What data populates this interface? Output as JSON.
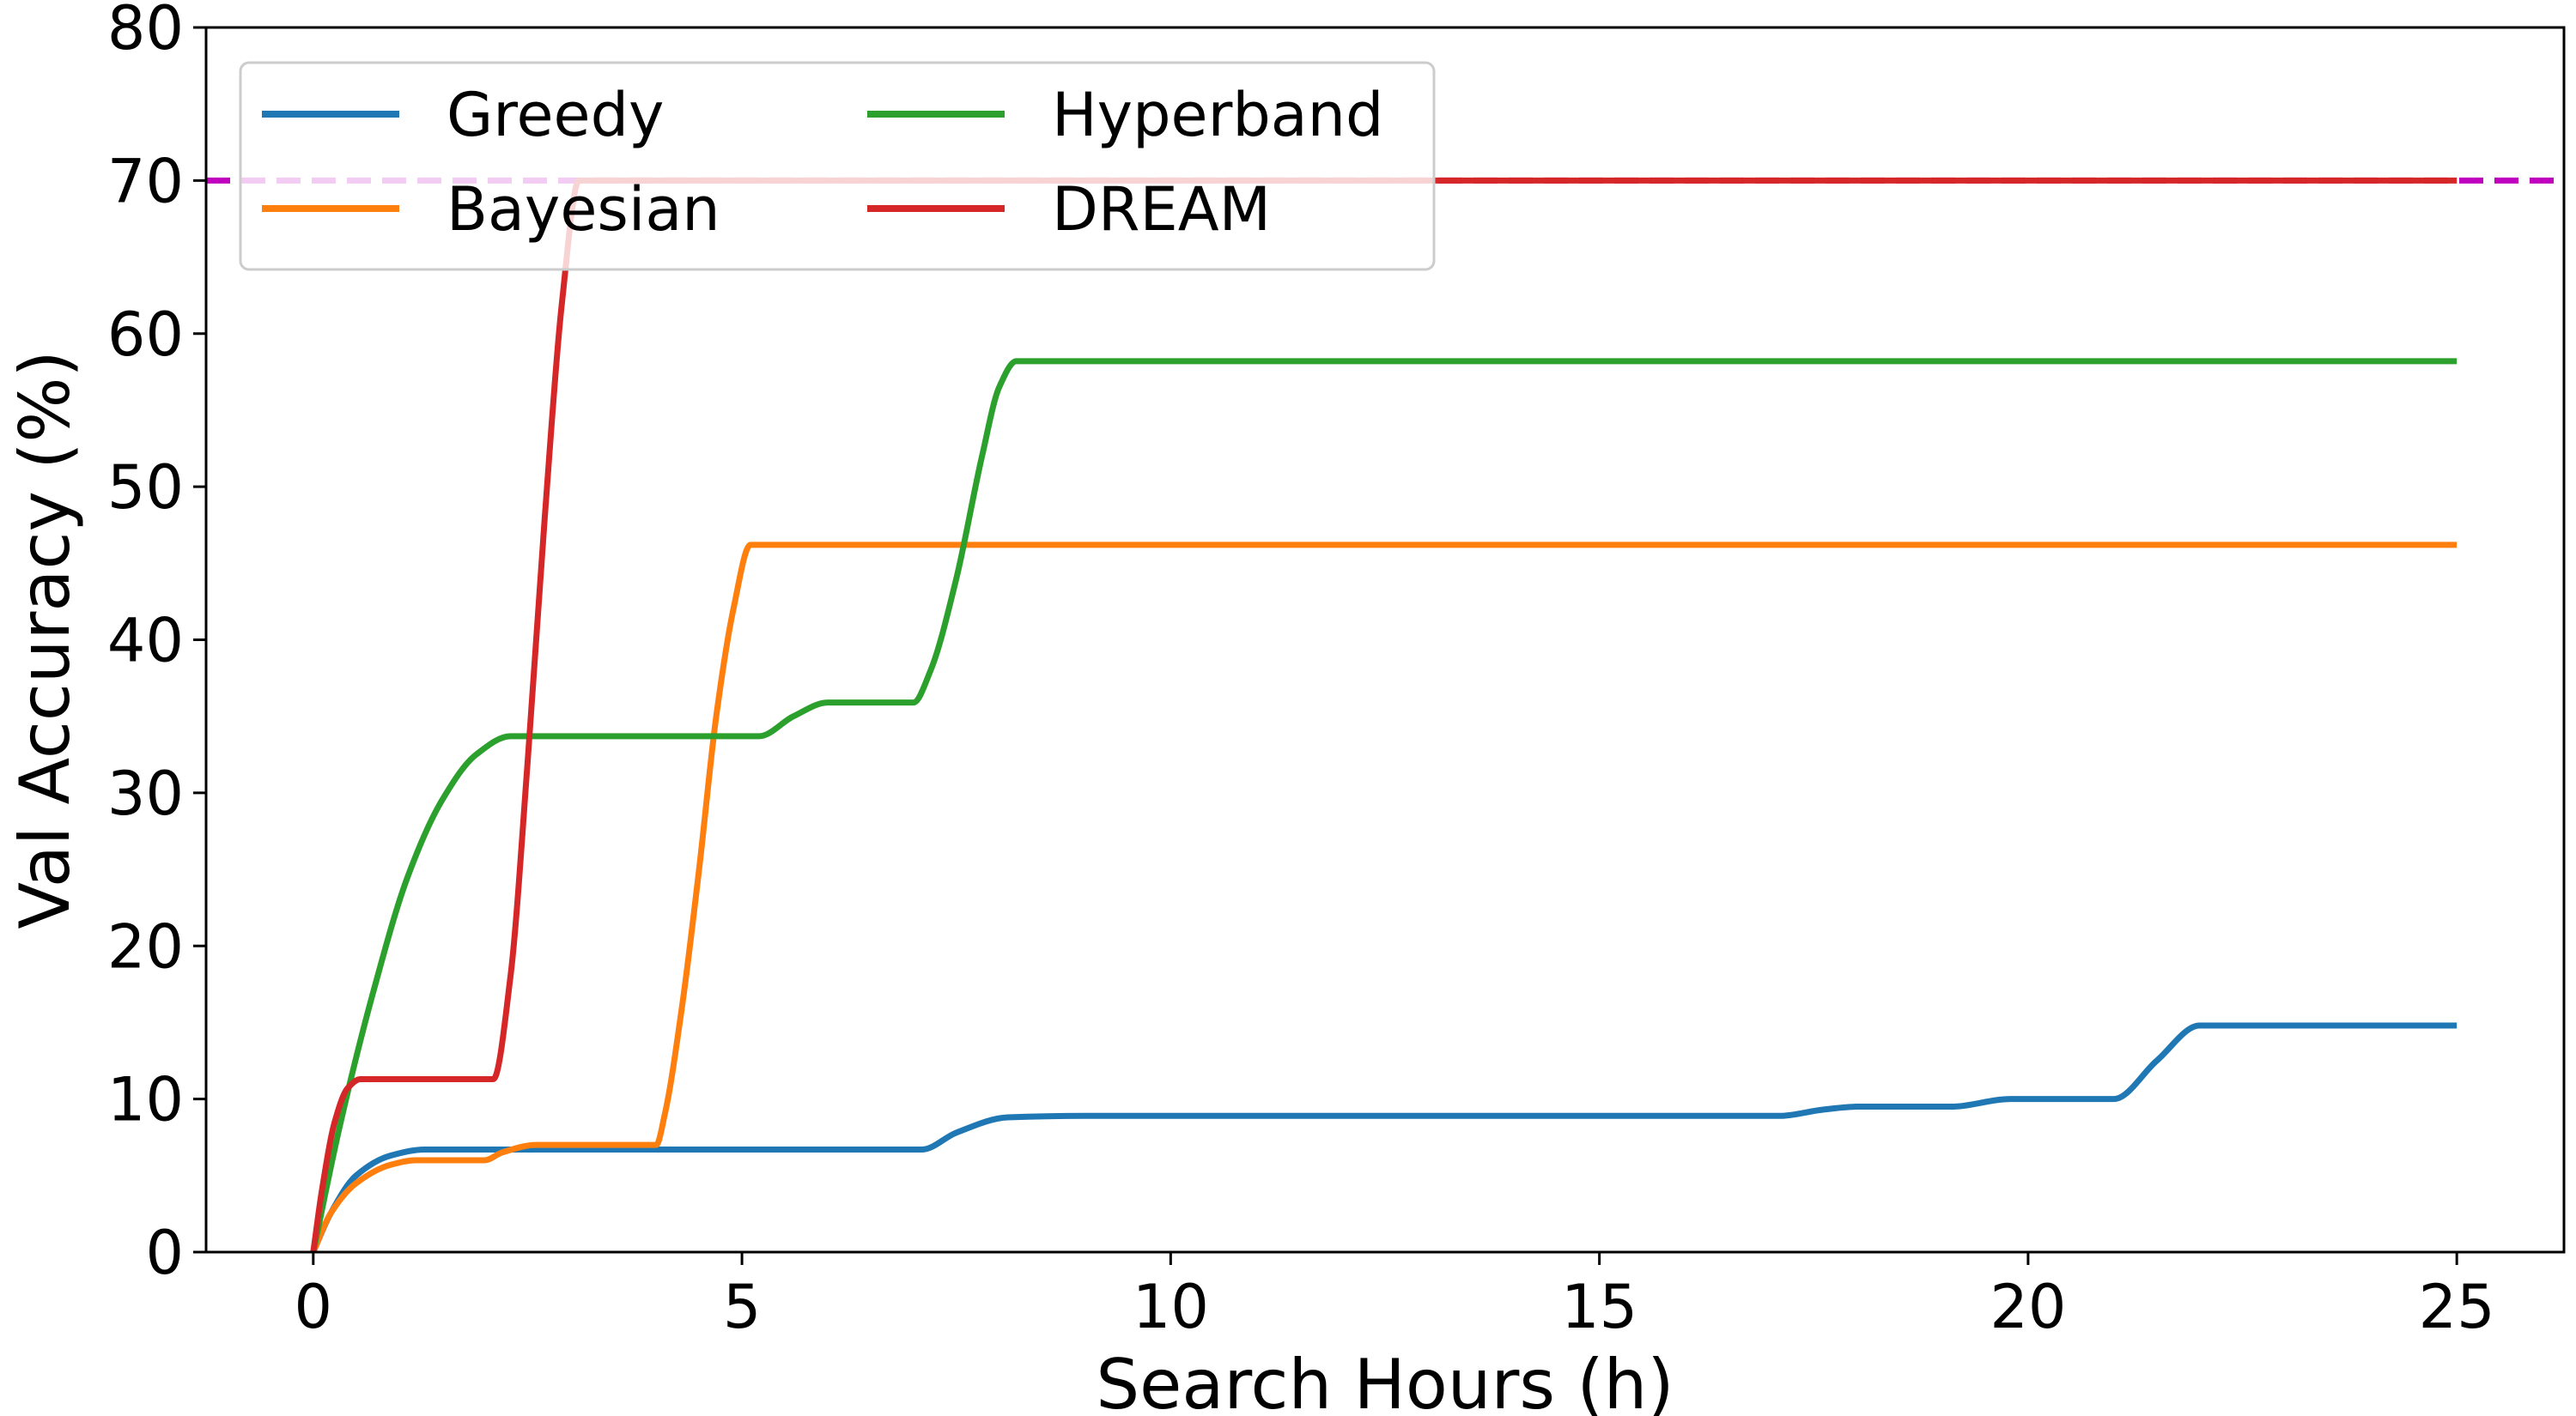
{
  "chart_data": {
    "type": "line",
    "title": "",
    "xlabel": "Search Hours (h)",
    "ylabel": "Val Accuracy (%)",
    "xlim": [
      -1.25,
      26.25
    ],
    "ylim": [
      0,
      80
    ],
    "xticks": [
      0,
      5,
      10,
      15,
      20,
      25
    ],
    "yticks": [
      0,
      10,
      20,
      30,
      40,
      50,
      60,
      70,
      80
    ],
    "grid": false,
    "legend": {
      "position": "top-left",
      "columns": 2
    },
    "reference_line": {
      "y": 70,
      "style": "dashed",
      "color": "#bf00bf"
    },
    "series": [
      {
        "name": "Greedy",
        "color": "#1f77b4",
        "points": [
          [
            0,
            0
          ],
          [
            0.2,
            2.5
          ],
          [
            0.5,
            5
          ],
          [
            0.9,
            6.3
          ],
          [
            1.3,
            6.7
          ],
          [
            2,
            6.7
          ],
          [
            5,
            6.7
          ],
          [
            7.1,
            6.7
          ],
          [
            7.5,
            7.8
          ],
          [
            8.1,
            8.8
          ],
          [
            9,
            8.9
          ],
          [
            12,
            8.9
          ],
          [
            15,
            8.9
          ],
          [
            17.1,
            8.9
          ],
          [
            17.6,
            9.3
          ],
          [
            18,
            9.5
          ],
          [
            19.1,
            9.5
          ],
          [
            19.8,
            10
          ],
          [
            21,
            10
          ],
          [
            21.5,
            12.5
          ],
          [
            22,
            14.8
          ],
          [
            25,
            14.8
          ]
        ]
      },
      {
        "name": "Bayesian",
        "color": "#ff7f0e",
        "points": [
          [
            0,
            0
          ],
          [
            0.2,
            2.5
          ],
          [
            0.5,
            4.5
          ],
          [
            0.9,
            5.7
          ],
          [
            1.2,
            6
          ],
          [
            2,
            6
          ],
          [
            2.2,
            6.5
          ],
          [
            2.6,
            7
          ],
          [
            3,
            7
          ],
          [
            4,
            7
          ],
          [
            4.1,
            9
          ],
          [
            4.3,
            16
          ],
          [
            4.5,
            25
          ],
          [
            4.7,
            35
          ],
          [
            4.9,
            42
          ],
          [
            5.1,
            46.2
          ],
          [
            6,
            46.2
          ],
          [
            10,
            46.2
          ],
          [
            15,
            46.2
          ],
          [
            20,
            46.2
          ],
          [
            25,
            46.2
          ]
        ]
      },
      {
        "name": "Hyperband",
        "color": "#2ca02c",
        "points": [
          [
            0,
            0
          ],
          [
            0.3,
            8
          ],
          [
            0.7,
            17
          ],
          [
            1.1,
            24.5
          ],
          [
            1.5,
            29.5
          ],
          [
            1.9,
            32.5
          ],
          [
            2.3,
            33.7
          ],
          [
            3,
            33.7
          ],
          [
            5.2,
            33.7
          ],
          [
            5.6,
            35
          ],
          [
            6,
            35.9
          ],
          [
            7,
            35.9
          ],
          [
            7.2,
            38
          ],
          [
            7.5,
            44
          ],
          [
            7.8,
            52
          ],
          [
            8,
            56.5
          ],
          [
            8.2,
            58.2
          ],
          [
            9,
            58.2
          ],
          [
            15,
            58.2
          ],
          [
            20,
            58.2
          ],
          [
            25,
            58.2
          ]
        ]
      },
      {
        "name": "DREAM",
        "color": "#d62728",
        "points": [
          [
            0,
            0
          ],
          [
            0.1,
            4
          ],
          [
            0.25,
            8.5
          ],
          [
            0.4,
            10.7
          ],
          [
            0.55,
            11.3
          ],
          [
            1.5,
            11.3
          ],
          [
            2.1,
            11.3
          ],
          [
            2.3,
            18
          ],
          [
            2.5,
            32
          ],
          [
            2.7,
            48
          ],
          [
            2.9,
            62
          ],
          [
            3.1,
            70
          ],
          [
            3.5,
            70
          ],
          [
            10,
            70
          ],
          [
            15,
            70
          ],
          [
            20,
            70
          ],
          [
            25,
            70
          ]
        ]
      }
    ]
  }
}
